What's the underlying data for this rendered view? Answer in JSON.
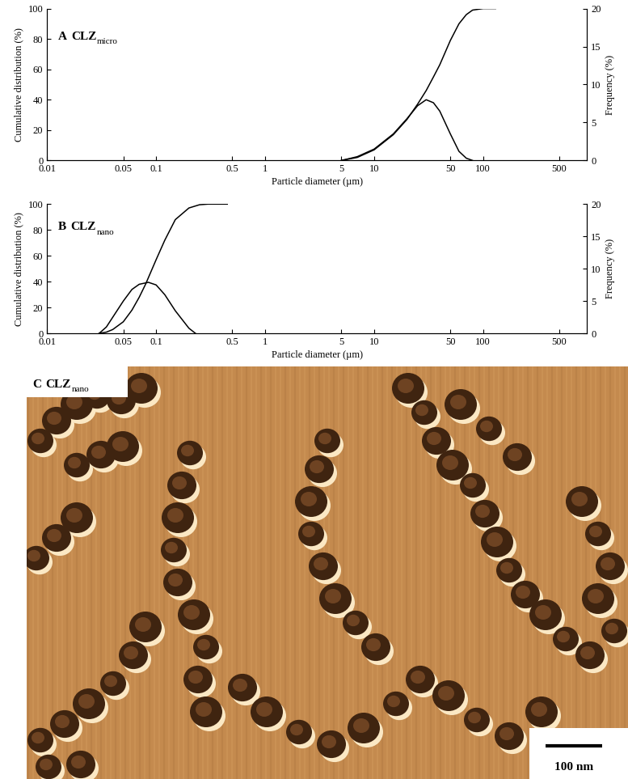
{
  "chart_data": [
    {
      "type": "line",
      "panel": "A",
      "title": "CLZ",
      "title_subscript": "micro",
      "x_label": "Particle diameter (µm)",
      "y_label": "Cumulative distribution (%)",
      "y2_label": "Frequency (%)",
      "log": "x",
      "xlim": [
        0.01,
        900
      ],
      "xticks": [
        0.01,
        0.05,
        0.1,
        0.5,
        1,
        5,
        10,
        50,
        100,
        500
      ],
      "ylim": [
        0,
        100
      ],
      "yticks": [
        0,
        20,
        40,
        60,
        80,
        100
      ],
      "y2lim": [
        0,
        20
      ],
      "y2ticks": [
        0,
        5,
        10,
        15,
        20
      ],
      "series": [
        {
          "name": "Cumulative distribution (%)",
          "axis": "y",
          "color": "#000000",
          "x": [
            5,
            7,
            10,
            15,
            20,
            25,
            30,
            35,
            40,
            50,
            60,
            70,
            80,
            100,
            130
          ],
          "values": [
            0,
            2,
            7,
            17,
            27,
            37,
            46,
            55,
            63,
            79,
            90,
            96,
            99,
            100,
            100
          ]
        },
        {
          "name": "Frequency (%)",
          "axis": "y2",
          "color": "#000000",
          "x": [
            5,
            7,
            10,
            15,
            20,
            25,
            30,
            35,
            40,
            50,
            60,
            70,
            80
          ],
          "values": [
            0,
            0.5,
            1.5,
            3.5,
            5.5,
            7.2,
            8,
            7.6,
            6.5,
            3.5,
            1.2,
            0.3,
            0
          ]
        }
      ]
    },
    {
      "type": "line",
      "panel": "B",
      "title": "CLZ",
      "title_subscript": "nano",
      "x_label": "Particle diameter (µm)",
      "y_label": "Cumulative distribution (%)",
      "y2_label": "Frequency (%)",
      "log": "x",
      "xlim": [
        0.01,
        900
      ],
      "xticks": [
        0.01,
        0.05,
        0.1,
        0.5,
        1,
        5,
        10,
        50,
        100,
        500
      ],
      "ylim": [
        0,
        100
      ],
      "yticks": [
        0,
        20,
        40,
        60,
        80,
        100
      ],
      "y2lim": [
        0,
        20
      ],
      "y2ticks": [
        0,
        5,
        10,
        15,
        20
      ],
      "series": [
        {
          "name": "Cumulative distribution (%)",
          "axis": "y",
          "color": "#000000",
          "x": [
            0.03,
            0.035,
            0.04,
            0.05,
            0.06,
            0.07,
            0.08,
            0.1,
            0.12,
            0.15,
            0.2,
            0.25,
            0.3,
            0.45
          ],
          "values": [
            0,
            1,
            3,
            9,
            18,
            28,
            38,
            57,
            72,
            88,
            97,
            99.5,
            100,
            100
          ]
        },
        {
          "name": "Frequency (%)",
          "axis": "y2",
          "color": "#000000",
          "x": [
            0.03,
            0.035,
            0.04,
            0.05,
            0.06,
            0.07,
            0.085,
            0.1,
            0.12,
            0.15,
            0.2,
            0.23
          ],
          "values": [
            0,
            1,
            2.5,
            5,
            6.8,
            7.6,
            7.9,
            7.5,
            6,
            3.5,
            0.8,
            0
          ]
        }
      ]
    }
  ],
  "image": {
    "panel": "C",
    "title": "CLZ",
    "title_subscript": "nano",
    "scale_bar": "100 nm"
  }
}
